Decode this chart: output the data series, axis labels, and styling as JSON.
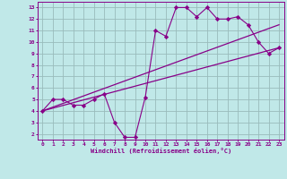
{
  "xlabel": "Windchill (Refroidissement éolien,°C)",
  "bg_color": "#c0e8e8",
  "line_color": "#880088",
  "grid_color": "#99bbbb",
  "xlim": [
    -0.5,
    23.5
  ],
  "ylim": [
    1.5,
    13.5
  ],
  "xticks": [
    0,
    1,
    2,
    3,
    4,
    5,
    6,
    7,
    8,
    9,
    10,
    11,
    12,
    13,
    14,
    15,
    16,
    17,
    18,
    19,
    20,
    21,
    22,
    23
  ],
  "yticks": [
    2,
    3,
    4,
    5,
    6,
    7,
    8,
    9,
    10,
    11,
    12,
    13
  ],
  "scatter_x": [
    0,
    1,
    2,
    3,
    4,
    5,
    6,
    7,
    8,
    9,
    10,
    11,
    12,
    13,
    14,
    15,
    16,
    17,
    18,
    19,
    20,
    21,
    22,
    23
  ],
  "scatter_y": [
    4.0,
    5.0,
    5.0,
    4.5,
    4.5,
    5.0,
    5.5,
    3.0,
    1.7,
    1.7,
    5.2,
    11.0,
    10.5,
    13.0,
    13.0,
    12.2,
    13.0,
    12.0,
    12.0,
    12.2,
    11.5,
    10.0,
    9.0,
    9.5
  ],
  "line1_x": [
    0,
    23
  ],
  "line1_y": [
    4.0,
    9.5
  ],
  "line2_x": [
    0,
    23
  ],
  "line2_y": [
    4.0,
    11.5
  ],
  "font_family": "monospace"
}
